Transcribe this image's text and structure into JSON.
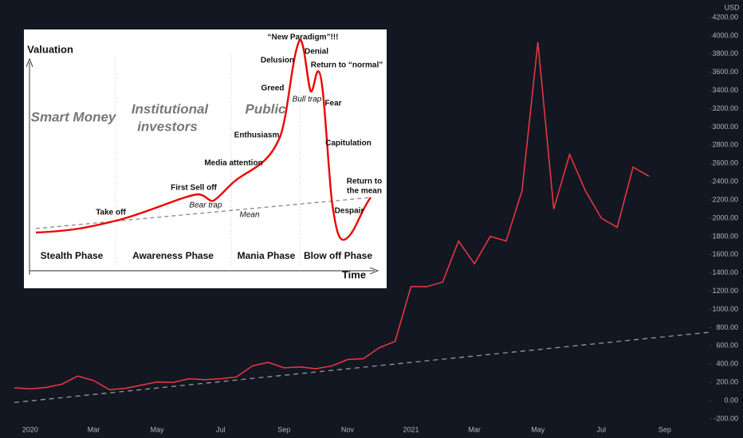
{
  "chart_data": {
    "type": "line",
    "currency": "USD",
    "categories": [
      null,
      "2020",
      null,
      null,
      null,
      "Mar",
      null,
      null,
      null,
      "May",
      null,
      null,
      null,
      "Jul",
      null,
      null,
      null,
      "Sep",
      null,
      null,
      null,
      "Nov",
      null,
      null,
      null,
      "2021",
      null,
      null,
      null,
      "Mar",
      null,
      null,
      null,
      "May",
      null,
      null,
      null,
      "Jul",
      null,
      null,
      null,
      "Sep"
    ],
    "series": [
      {
        "color": "#f23645",
        "values": [
          140,
          130,
          145,
          180,
          270,
          220,
          120,
          135,
          170,
          205,
          200,
          240,
          230,
          240,
          260,
          380,
          420,
          360,
          370,
          350,
          380,
          450,
          460,
          580,
          650,
          1250,
          1250,
          1300,
          1750,
          1500,
          1800,
          1750,
          2300,
          3930,
          2100,
          2700,
          2300,
          2000,
          1900,
          2560,
          2460,
          null
        ]
      }
    ],
    "trendline": {
      "values": [
        -20,
        750
      ],
      "color": "#9598a1",
      "dashed": true
    },
    "ylim": [
      -200,
      4200
    ],
    "yticks": [
      {
        "value": -200,
        "label": "-200.00"
      },
      {
        "value": 0,
        "label": "0.00"
      },
      {
        "value": 200,
        "label": "200.00"
      },
      {
        "value": 400,
        "label": "400.00"
      },
      {
        "value": 600,
        "label": "600.00"
      },
      {
        "value": 800,
        "label": "800.00"
      },
      {
        "value": 1000,
        "label": "1000.00"
      },
      {
        "value": 1200,
        "label": "1200.00"
      },
      {
        "value": 1400,
        "label": "1400.00"
      },
      {
        "value": 1600,
        "label": "1600.00"
      },
      {
        "value": 1800,
        "label": "1800.00"
      },
      {
        "value": 2000,
        "label": "2000.00"
      },
      {
        "value": 2200,
        "label": "2200.00"
      },
      {
        "value": 2400,
        "label": "2400.00"
      },
      {
        "value": 2600,
        "label": "2600.00"
      },
      {
        "value": 2800,
        "label": "2800.00"
      },
      {
        "value": 3000,
        "label": "3000.00"
      },
      {
        "value": 3200,
        "label": "3200.00"
      },
      {
        "value": 3400,
        "label": "3400.00"
      },
      {
        "value": 3600,
        "label": "3600.00"
      },
      {
        "value": 3800,
        "label": "3800.00"
      },
      {
        "value": 4000,
        "label": "4000.00"
      },
      {
        "value": 4200,
        "label": "4200.00"
      }
    ],
    "grid": false
  },
  "inset": {
    "y_label": "Valuation",
    "x_label": "Time",
    "groups": [
      "Smart Money",
      [
        "Institutional",
        "investors"
      ],
      "Public"
    ],
    "labels": [
      "“New Paradigm”!!!",
      "Delusion",
      "Denial",
      "Return to “normal”",
      "Greed",
      "Bull trap",
      "Fear",
      "Enthusiasm",
      "Capitulation",
      "Media attention",
      [
        "Return to",
        "the mean"
      ],
      "First Sell off",
      "Bear trap",
      "Take off",
      "Despair",
      "Mean"
    ],
    "phases": [
      "Stealth Phase",
      "Awareness Phase",
      "Mania Phase",
      "Blow off Phase"
    ]
  }
}
